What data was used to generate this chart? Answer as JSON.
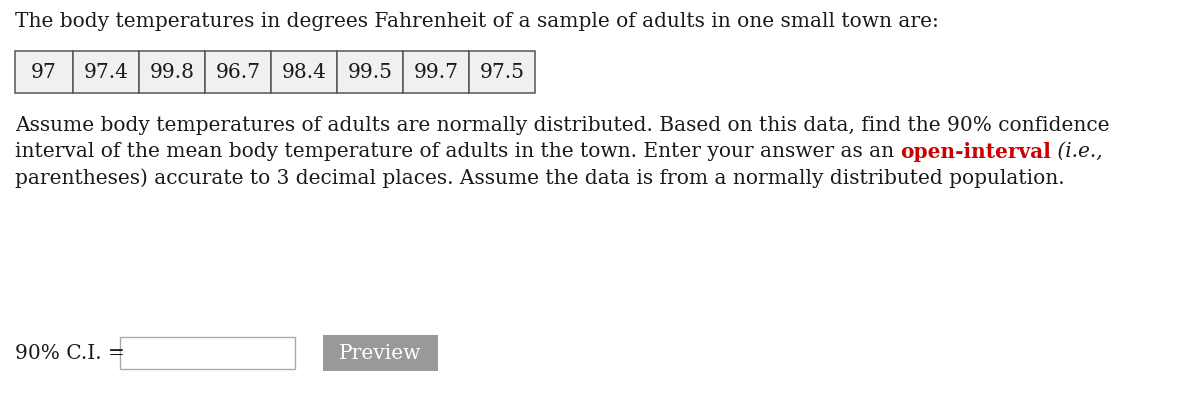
{
  "title_text": "The body temperatures in degrees Fahrenheit of a sample of adults in one small town are:",
  "table_values": [
    "97",
    "97.4",
    "99.8",
    "96.7",
    "98.4",
    "99.5",
    "99.7",
    "97.5"
  ],
  "paragraph_line1": "Assume body temperatures of adults are normally distributed. Based on this data, find the 90% confidence",
  "paragraph_line2_before": "interval of the mean body temperature of adults in the town. Enter your answer as an ",
  "paragraph_line2_red": "open-interval",
  "paragraph_line2_italic": " (i.e.,",
  "paragraph_line3": "parentheses) accurate to 3 decimal places. Assume the data is from a normally distributed population.",
  "label_text": "90% C.I. =",
  "button_text": "Preview",
  "background_color": "#ffffff",
  "text_color": "#1a1a1a",
  "red_color": "#cc0000",
  "table_border_color": "#555555",
  "table_bg_color": "#f0f0f0",
  "button_bg_color": "#999999",
  "button_text_color": "#ffffff",
  "input_bg_color": "#ffffff",
  "input_border_color": "#aaaaaa",
  "font_size": 14.5
}
